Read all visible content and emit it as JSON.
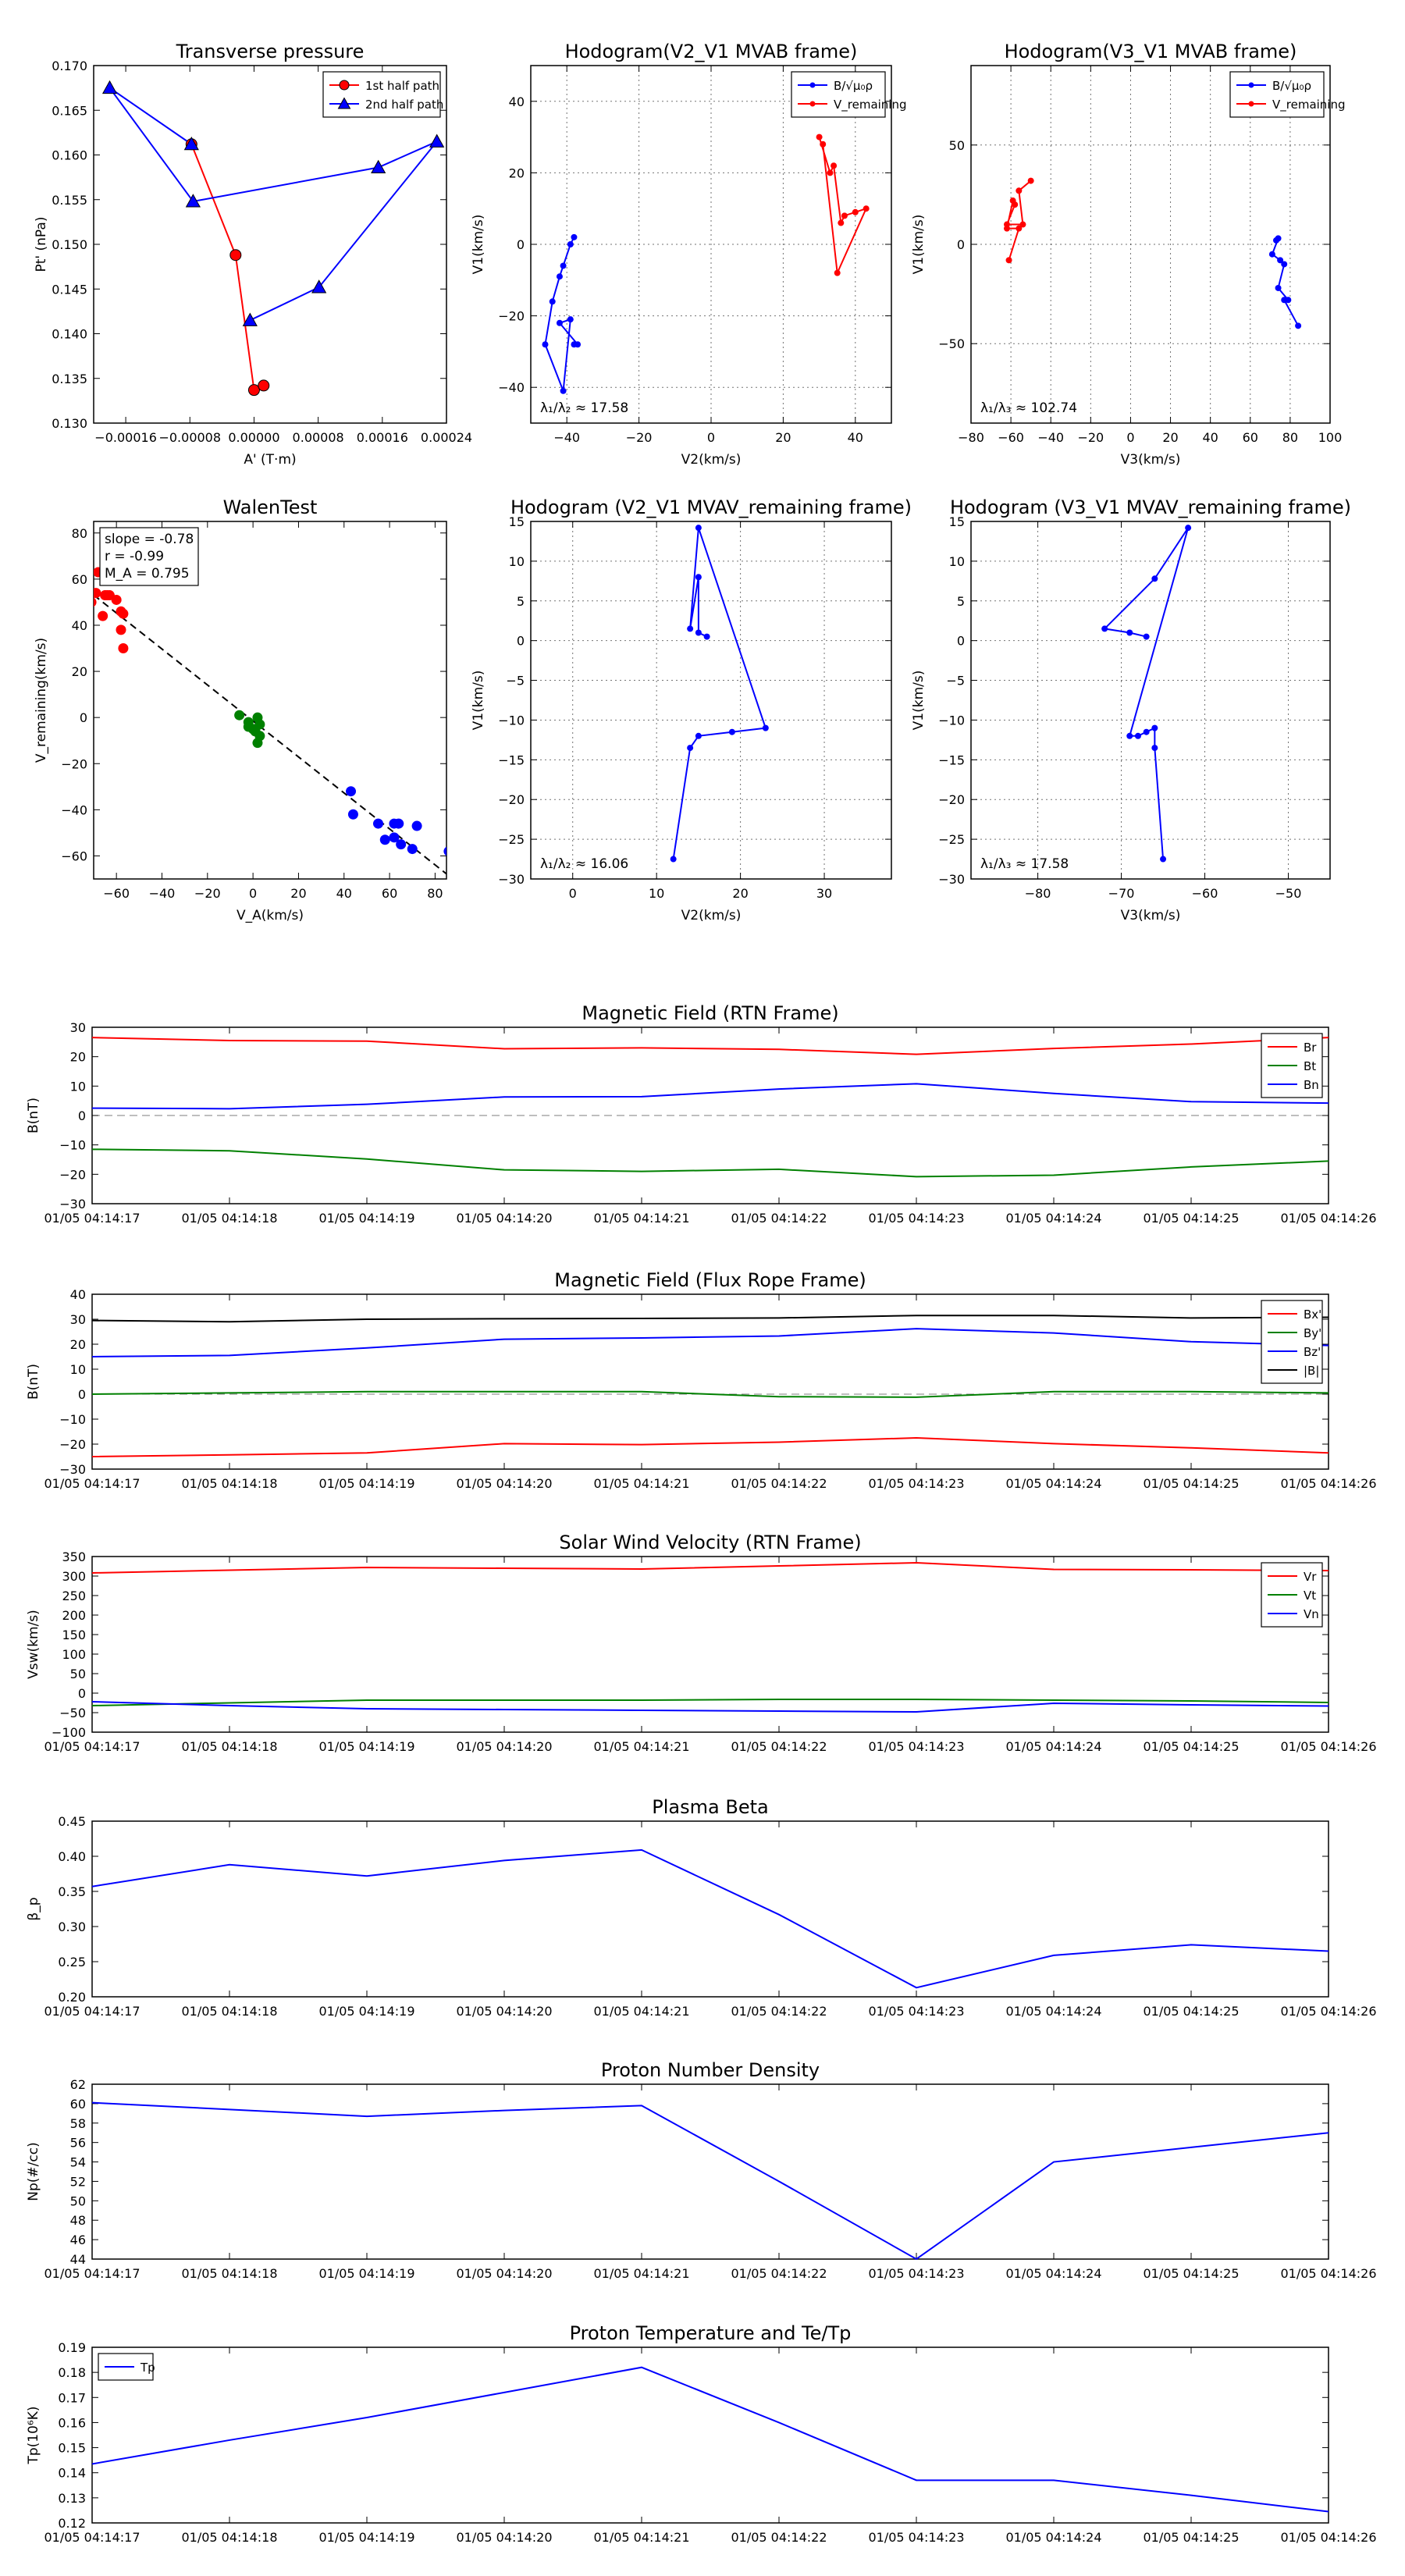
{
  "chart_data": [
    {
      "id": "tp",
      "type": "scatter",
      "title": "Transverse pressure",
      "xlabel": "A' (T·m)",
      "ylabel": "Pt' (nPa)",
      "xlim": [
        -0.0002,
        0.00024
      ],
      "ylim": [
        0.13,
        0.17
      ],
      "xticks": [
        -0.00016,
        -8e-05,
        0.0,
        8e-05,
        0.00016,
        0.00024
      ],
      "xtick_labels": [
        "−0.00016",
        "−0.00008",
        "0.00000",
        "0.00008",
        "0.00016",
        "0.00024"
      ],
      "yticks": [
        0.13,
        0.135,
        0.14,
        0.145,
        0.15,
        0.155,
        0.16,
        0.165,
        0.17
      ],
      "ytick_labels": [
        "0.130",
        "0.135",
        "0.140",
        "0.145",
        "0.150",
        "0.155",
        "0.160",
        "0.165",
        "0.170"
      ],
      "grid": false,
      "legend_position": "top-right",
      "series": [
        {
          "name": "1st half path",
          "color": "#ff0000",
          "marker": "circle",
          "x": [
            -7.8e-05,
            -2.3e-05,
            0.0,
            1.2e-05
          ],
          "y": [
            0.1612,
            0.1488,
            0.1337,
            0.1342
          ]
        },
        {
          "name": "2nd half path",
          "color": "#0000ff",
          "marker": "triangle",
          "x": [
            -7.8e-05,
            -0.00018,
            -7.6e-05,
            0.000155,
            0.000228,
            8.1e-05,
            -5e-06
          ],
          "y": [
            0.1612,
            0.1675,
            0.1548,
            0.1586,
            0.1615,
            0.1452,
            0.1415
          ]
        }
      ]
    },
    {
      "id": "h_v2v1",
      "type": "line",
      "title": "Hodogram(V2_V1 MVAB frame)",
      "xlabel": "V2(km/s)",
      "ylabel": "V1(km/s)",
      "xlim": [
        -50,
        50
      ],
      "ylim": [
        -50,
        50
      ],
      "xticks": [
        -40,
        -20,
        0,
        20,
        40
      ],
      "yticks": [
        -40,
        -20,
        0,
        20,
        40
      ],
      "grid": true,
      "legend_position": "top-right",
      "annotation": "λ₁/λ₂ ≈ 17.58",
      "series": [
        {
          "name": "B/√μ₀ρ",
          "color": "#0000ff",
          "x": [
            -38,
            -39,
            -41,
            -42,
            -44,
            -46,
            -41,
            -39,
            -42,
            -37,
            -38
          ],
          "y": [
            2,
            0,
            -6,
            -9,
            -16,
            -28,
            -41,
            -21,
            -22,
            -28,
            -28
          ]
        },
        {
          "name": "V_remaining",
          "color": "#ff0000",
          "x": [
            30,
            33,
            34,
            36,
            37,
            40,
            43,
            35,
            31
          ],
          "y": [
            30,
            20,
            22,
            6,
            8,
            9,
            10,
            -8,
            28
          ]
        }
      ]
    },
    {
      "id": "h_v3v1",
      "type": "line",
      "title": "Hodogram(V3_V1 MVAB frame)",
      "xlabel": "V3(km/s)",
      "ylabel": "V1(km/s)",
      "xlim": [
        -80,
        100
      ],
      "ylim": [
        -90,
        90
      ],
      "xticks": [
        -80,
        -60,
        -40,
        -20,
        0,
        20,
        40,
        60,
        80,
        100
      ],
      "yticks": [
        -50,
        0,
        50
      ],
      "grid": true,
      "legend_position": "top-right",
      "annotation": "λ₁/λ₃ ≈ 102.74",
      "series": [
        {
          "name": "B/√μ₀ρ",
          "color": "#0000ff",
          "x": [
            73,
            74,
            71,
            75,
            77,
            74,
            79,
            77,
            84
          ],
          "y": [
            2,
            3,
            -5,
            -8,
            -10,
            -22,
            -28,
            -28,
            -41
          ]
        },
        {
          "name": "V_remaining",
          "color": "#ff0000",
          "x": [
            -50,
            -56,
            -54,
            -62,
            -58,
            -59,
            -62,
            -56,
            -61
          ],
          "y": [
            32,
            27,
            10,
            10,
            20,
            22,
            8,
            8,
            -8
          ]
        }
      ]
    },
    {
      "id": "walen",
      "type": "scatter",
      "title": "WalenTest",
      "xlabel": "V_A(km/s)",
      "ylabel": "V_remaining(km/s)",
      "xlim": [
        -70,
        85
      ],
      "ylim": [
        -70,
        85
      ],
      "xticks": [
        -60,
        -40,
        -20,
        0,
        20,
        40,
        60,
        80
      ],
      "yticks": [
        -60,
        -40,
        -20,
        0,
        20,
        40,
        60,
        80
      ],
      "grid": false,
      "legend_position": "top-left",
      "annotations": [
        "slope = -0.78",
        "r = -0.99",
        "M_A = 0.795"
      ],
      "fit_line": {
        "slope": -0.78,
        "intercept": -1.5
      },
      "series": [
        {
          "name": "red",
          "color": "#ff0000",
          "x": [
            -68,
            -65,
            -64,
            -60,
            -58,
            -57,
            -58,
            -57,
            -66,
            -69,
            -63,
            -71
          ],
          "y": [
            63,
            53,
            53,
            51,
            46,
            45,
            38,
            30,
            44,
            54,
            53,
            50
          ]
        },
        {
          "name": "green",
          "color": "#008000",
          "x": [
            -6,
            -2,
            0,
            1,
            2,
            3,
            2,
            3,
            -2
          ],
          "y": [
            1,
            -2,
            -5,
            -6,
            0,
            -8,
            -11,
            -3,
            -4
          ]
        },
        {
          "name": "blue",
          "color": "#0000ff",
          "x": [
            43,
            44,
            55,
            58,
            62,
            62,
            64,
            65,
            70,
            72,
            86
          ],
          "y": [
            -32,
            -42,
            -46,
            -53,
            -52,
            -46,
            -46,
            -55,
            -57,
            -47,
            -58
          ]
        }
      ]
    },
    {
      "id": "h_v2v1_rem",
      "type": "line",
      "title": "Hodogram (V2_V1 MVAV_remaining frame)",
      "xlabel": "V2(km/s)",
      "ylabel": "V1(km/s)",
      "xlim": [
        -5,
        38
      ],
      "ylim": [
        -30,
        15
      ],
      "xticks": [
        0,
        10,
        20,
        30
      ],
      "yticks": [
        -30,
        -25,
        -20,
        -15,
        -10,
        -5,
        0,
        5,
        10,
        15
      ],
      "grid": true,
      "annotation": "λ₁/λ₂ ≈ 16.06",
      "series": [
        {
          "name": "path",
          "color": "#0000ff",
          "x": [
            12,
            14,
            15,
            19,
            23,
            15,
            14,
            15,
            15,
            16
          ],
          "y": [
            -27.5,
            -13.5,
            -12,
            -11.5,
            -11,
            14.2,
            1.5,
            8,
            1,
            0.5
          ]
        }
      ]
    },
    {
      "id": "h_v3v1_rem",
      "type": "line",
      "title": "Hodogram (V3_V1 MVAV_remaining frame)",
      "xlabel": "V3(km/s)",
      "ylabel": "V1(km/s)",
      "xlim": [
        -88,
        -45
      ],
      "ylim": [
        -30,
        15
      ],
      "xticks": [
        -80,
        -70,
        -60,
        -50
      ],
      "yticks": [
        -30,
        -25,
        -20,
        -15,
        -10,
        -5,
        0,
        5,
        10,
        15
      ],
      "grid": true,
      "annotation": "λ₁/λ₃ ≈ 17.58",
      "series": [
        {
          "name": "path",
          "color": "#0000ff",
          "x": [
            -65,
            -66,
            -66,
            -67,
            -68,
            -69,
            -62,
            -66,
            -72,
            -69,
            -67
          ],
          "y": [
            -27.5,
            -13.5,
            -11,
            -11.5,
            -12,
            -12,
            14.2,
            7.8,
            1.5,
            1,
            0.5
          ]
        }
      ]
    },
    {
      "id": "mag_rtn",
      "type": "line",
      "title": "Magnetic Field (RTN Frame)",
      "ylabel": "B(nT)",
      "ylim": [
        -30,
        30
      ],
      "yticks": [
        -30,
        -20,
        -10,
        0,
        10,
        20,
        30
      ],
      "categories": [
        "01/05 04:14:17",
        "01/05 04:14:18",
        "01/05 04:14:19",
        "01/05 04:14:20",
        "01/05 04:14:21",
        "01/05 04:14:22",
        "01/05 04:14:23",
        "01/05 04:14:24",
        "01/05 04:14:25",
        "01/05 04:14:26"
      ],
      "zero_line": true,
      "legend_position": "top-right",
      "series": [
        {
          "name": "Br",
          "color": "#ff0000",
          "values": [
            26.5,
            25.5,
            25.3,
            22.7,
            23.0,
            22.5,
            20.8,
            22.8,
            24.3,
            26.5
          ]
        },
        {
          "name": "Bt",
          "color": "#008000",
          "values": [
            -11.5,
            -12.0,
            -14.8,
            -18.5,
            -19.0,
            -18.3,
            -20.8,
            -20.3,
            -17.5,
            -15.5
          ]
        },
        {
          "name": "Bn",
          "color": "#0000ff",
          "values": [
            2.5,
            2.3,
            3.8,
            6.3,
            6.4,
            9.0,
            10.8,
            7.5,
            4.7,
            4.2
          ]
        }
      ]
    },
    {
      "id": "mag_fr",
      "type": "line",
      "title": "Magnetic Field (Flux Rope Frame)",
      "ylabel": "B(nT)",
      "ylim": [
        -30,
        40
      ],
      "yticks": [
        -30,
        -20,
        -10,
        0,
        10,
        20,
        30,
        40
      ],
      "categories": [
        "01/05 04:14:17",
        "01/05 04:14:18",
        "01/05 04:14:19",
        "01/05 04:14:20",
        "01/05 04:14:21",
        "01/05 04:14:22",
        "01/05 04:14:23",
        "01/05 04:14:24",
        "01/05 04:14:25",
        "01/05 04:14:26"
      ],
      "zero_line": true,
      "legend_position": "top-right",
      "series": [
        {
          "name": "Bx'",
          "color": "#ff0000",
          "values": [
            -25.0,
            -24.3,
            -23.5,
            -19.8,
            -20.2,
            -19.2,
            -17.5,
            -19.8,
            -21.5,
            -23.5
          ]
        },
        {
          "name": "By'",
          "color": "#008000",
          "values": [
            0.0,
            0.5,
            1.0,
            1.0,
            1.0,
            -1.0,
            -1.2,
            1.0,
            1.0,
            0.5
          ]
        },
        {
          "name": "Bz'",
          "color": "#0000ff",
          "values": [
            15.0,
            15.5,
            18.5,
            22.0,
            22.5,
            23.3,
            26.2,
            24.5,
            21.0,
            19.5
          ]
        },
        {
          "name": "|B|",
          "color": "#000000",
          "values": [
            29.5,
            29.0,
            30.0,
            30.2,
            30.3,
            30.5,
            31.5,
            31.5,
            30.5,
            30.8
          ]
        }
      ]
    },
    {
      "id": "vsw",
      "type": "line",
      "title": "Solar Wind Velocity (RTN Frame)",
      "ylabel": "Vsw(km/s)",
      "ylim": [
        -100,
        350
      ],
      "yticks": [
        -100,
        -50,
        0,
        50,
        100,
        150,
        200,
        250,
        300,
        350
      ],
      "categories": [
        "01/05 04:14:17",
        "01/05 04:14:18",
        "01/05 04:14:19",
        "01/05 04:14:20",
        "01/05 04:14:21",
        "01/05 04:14:22",
        "01/05 04:14:23",
        "01/05 04:14:24",
        "01/05 04:14:25",
        "01/05 04:14:26"
      ],
      "legend_position": "top-right",
      "series": [
        {
          "name": "Vr",
          "color": "#ff0000",
          "values": [
            308,
            315,
            322,
            320,
            318,
            326,
            334,
            317,
            316,
            314
          ]
        },
        {
          "name": "Vt",
          "color": "#008000",
          "values": [
            -32,
            -25,
            -18,
            -18,
            -18,
            -16,
            -16,
            -18,
            -20,
            -24
          ]
        },
        {
          "name": "Vn",
          "color": "#0000ff",
          "values": [
            -22,
            -32,
            -40,
            -42,
            -44,
            -46,
            -48,
            -26,
            -30,
            -33
          ]
        }
      ]
    },
    {
      "id": "beta",
      "type": "line",
      "title": "Plasma Beta",
      "ylabel": "β_p",
      "ylim": [
        0.2,
        0.45
      ],
      "yticks": [
        0.2,
        0.25,
        0.3,
        0.35,
        0.4,
        0.45
      ],
      "ytick_labels": [
        "0.20",
        "0.25",
        "0.30",
        "0.35",
        "0.40",
        "0.45"
      ],
      "categories": [
        "01/05 04:14:17",
        "01/05 04:14:18",
        "01/05 04:14:19",
        "01/05 04:14:20",
        "01/05 04:14:21",
        "01/05 04:14:22",
        "01/05 04:14:23",
        "01/05 04:14:24",
        "01/05 04:14:25",
        "01/05 04:14:26"
      ],
      "series": [
        {
          "name": "beta",
          "color": "#0000ff",
          "values": [
            0.357,
            0.388,
            0.372,
            0.394,
            0.409,
            0.317,
            0.213,
            0.259,
            0.274,
            0.265
          ]
        }
      ]
    },
    {
      "id": "np",
      "type": "line",
      "title": "Proton Number Density",
      "ylabel": "Np(#/cc)",
      "ylim": [
        44,
        62
      ],
      "yticks": [
        44,
        46,
        48,
        50,
        52,
        54,
        56,
        58,
        60,
        62
      ],
      "categories": [
        "01/05 04:14:17",
        "01/05 04:14:18",
        "01/05 04:14:19",
        "01/05 04:14:20",
        "01/05 04:14:21",
        "01/05 04:14:22",
        "01/05 04:14:23",
        "01/05 04:14:24",
        "01/05 04:14:25",
        "01/05 04:14:26"
      ],
      "series": [
        {
          "name": "Np",
          "color": "#0000ff",
          "values": [
            60.1,
            59.4,
            58.7,
            59.3,
            59.8,
            52.0,
            44.0,
            54.0,
            55.5,
            57.0
          ]
        }
      ]
    },
    {
      "id": "tpp",
      "type": "line",
      "title": "Proton Temperature and Te/Tp",
      "ylabel": "Tp(10⁶K)",
      "ylim": [
        0.12,
        0.19
      ],
      "yticks": [
        0.12,
        0.13,
        0.14,
        0.15,
        0.16,
        0.17,
        0.18,
        0.19
      ],
      "categories": [
        "01/05 04:14:17",
        "01/05 04:14:18",
        "01/05 04:14:19",
        "01/05 04:14:20",
        "01/05 04:14:21",
        "01/05 04:14:22",
        "01/05 04:14:23",
        "01/05 04:14:24",
        "01/05 04:14:25",
        "01/05 04:14:26"
      ],
      "legend_position": "top-left",
      "series": [
        {
          "name": "Tp",
          "color": "#0000ff",
          "values": [
            0.1435,
            0.153,
            0.162,
            0.172,
            0.182,
            0.16,
            0.137,
            0.137,
            0.131,
            0.1245
          ]
        }
      ]
    }
  ]
}
